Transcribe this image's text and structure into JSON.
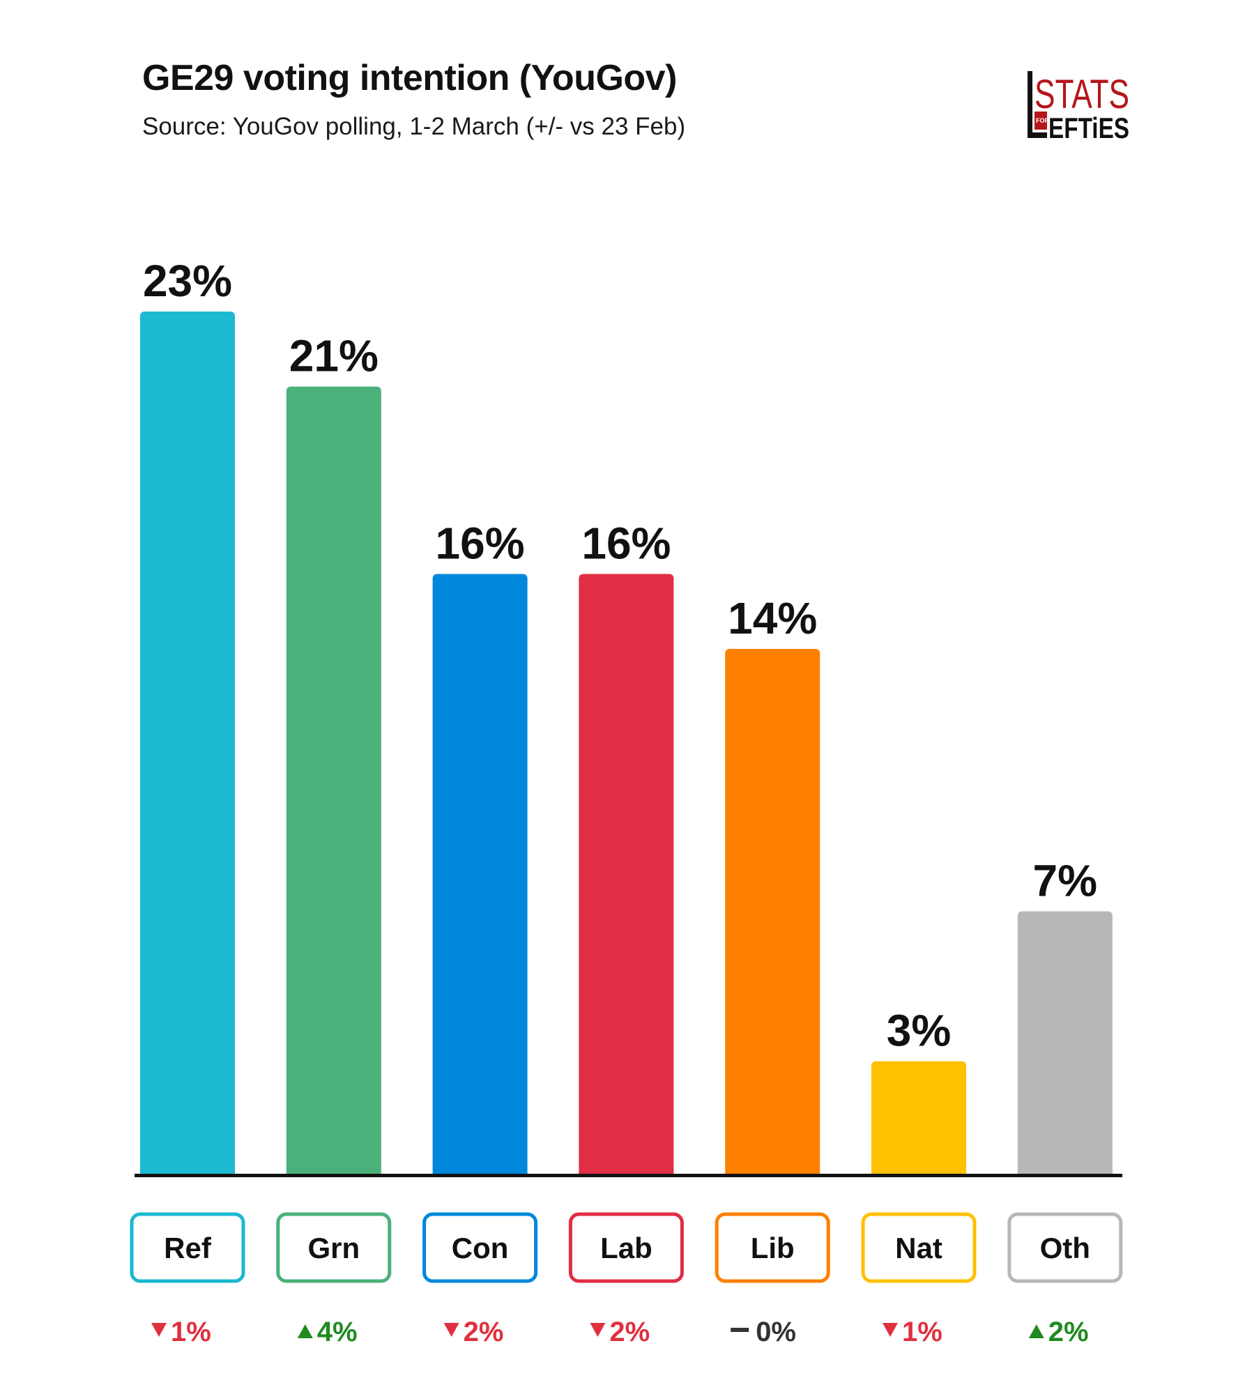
{
  "header": {
    "title": "GE29 voting intention (YouGov)",
    "subtitle": "Source: YouGov polling, 1-2 March (+/-  vs 23 Feb)"
  },
  "logo": {
    "top": "STATS",
    "small": "FOR",
    "bottom": "EFTiES",
    "initial": "L",
    "color": "#b3161b"
  },
  "colors": {
    "down": "#e0303f",
    "up": "#1f8a1f",
    "neutral": "#333333",
    "axis": "#111111"
  },
  "chart_data": {
    "type": "bar",
    "title": "GE29 voting intention (YouGov)",
    "subtitle": "Source: YouGov polling, 1-2 March (+/-  vs 23 Feb)",
    "categories": [
      "Ref",
      "Grn",
      "Con",
      "Lab",
      "Lib",
      "Nat",
      "Oth"
    ],
    "values": [
      23,
      21,
      16,
      16,
      14,
      3,
      7
    ],
    "value_labels": [
      "23%",
      "21%",
      "16%",
      "16%",
      "14%",
      "3%",
      "7%"
    ],
    "changes": [
      {
        "dir": "down",
        "text": "1%"
      },
      {
        "dir": "up",
        "text": "4%"
      },
      {
        "dir": "down",
        "text": "2%"
      },
      {
        "dir": "down",
        "text": "2%"
      },
      {
        "dir": "none",
        "text": "0%"
      },
      {
        "dir": "down",
        "text": "1%"
      },
      {
        "dir": "up",
        "text": "2%"
      }
    ],
    "colors": [
      "#1db8d1",
      "#4bb17b",
      "#0087db",
      "#e02e44",
      "#ff7f00",
      "#ffc000",
      "#b8b7b5"
    ],
    "ylim": [
      0,
      23
    ],
    "grid": false,
    "legend": "none"
  }
}
